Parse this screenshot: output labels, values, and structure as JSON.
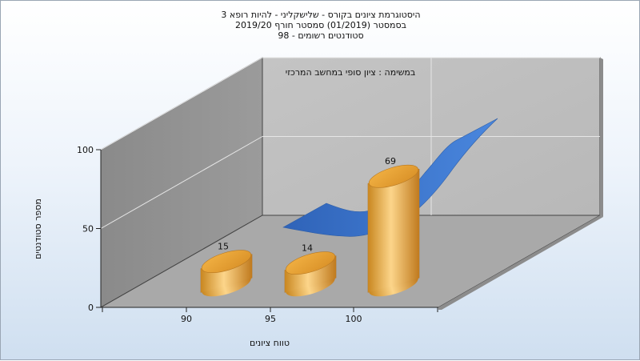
{
  "chart_data": {
    "type": "bar",
    "title": [
      "היסטוגרמת ציונים בקורס - שלישקליני - להיות רופא 3",
      "בסמסטר  (01/2019)  סמסטר חורף  2019/20",
      "סטודנטים רשומים - 98"
    ],
    "annotation": "במשימה : ציון סופי במחשב המרכזי",
    "xlabel": "טווח ציונים",
    "ylabel": "מספר סטודנטים",
    "categories": [
      "90",
      "95",
      "100"
    ],
    "values": [
      15,
      14,
      69
    ],
    "data_labels": [
      "15",
      "14",
      "69"
    ],
    "yticks": [
      "0",
      "50",
      "100"
    ],
    "ylim": [
      0,
      100
    ],
    "grid": true,
    "secondary_series": {
      "type": "area-3d",
      "color": "#3a76d0",
      "shape_values": [
        55,
        53,
        58,
        90
      ]
    },
    "colors": {
      "bar": "#e4a23c",
      "bar_light": "#fcd58a",
      "bar_dark": "#c07a1e",
      "area": "#3a76d0",
      "wall": "#bdbdbd",
      "floor": "#a9a9a9"
    }
  }
}
